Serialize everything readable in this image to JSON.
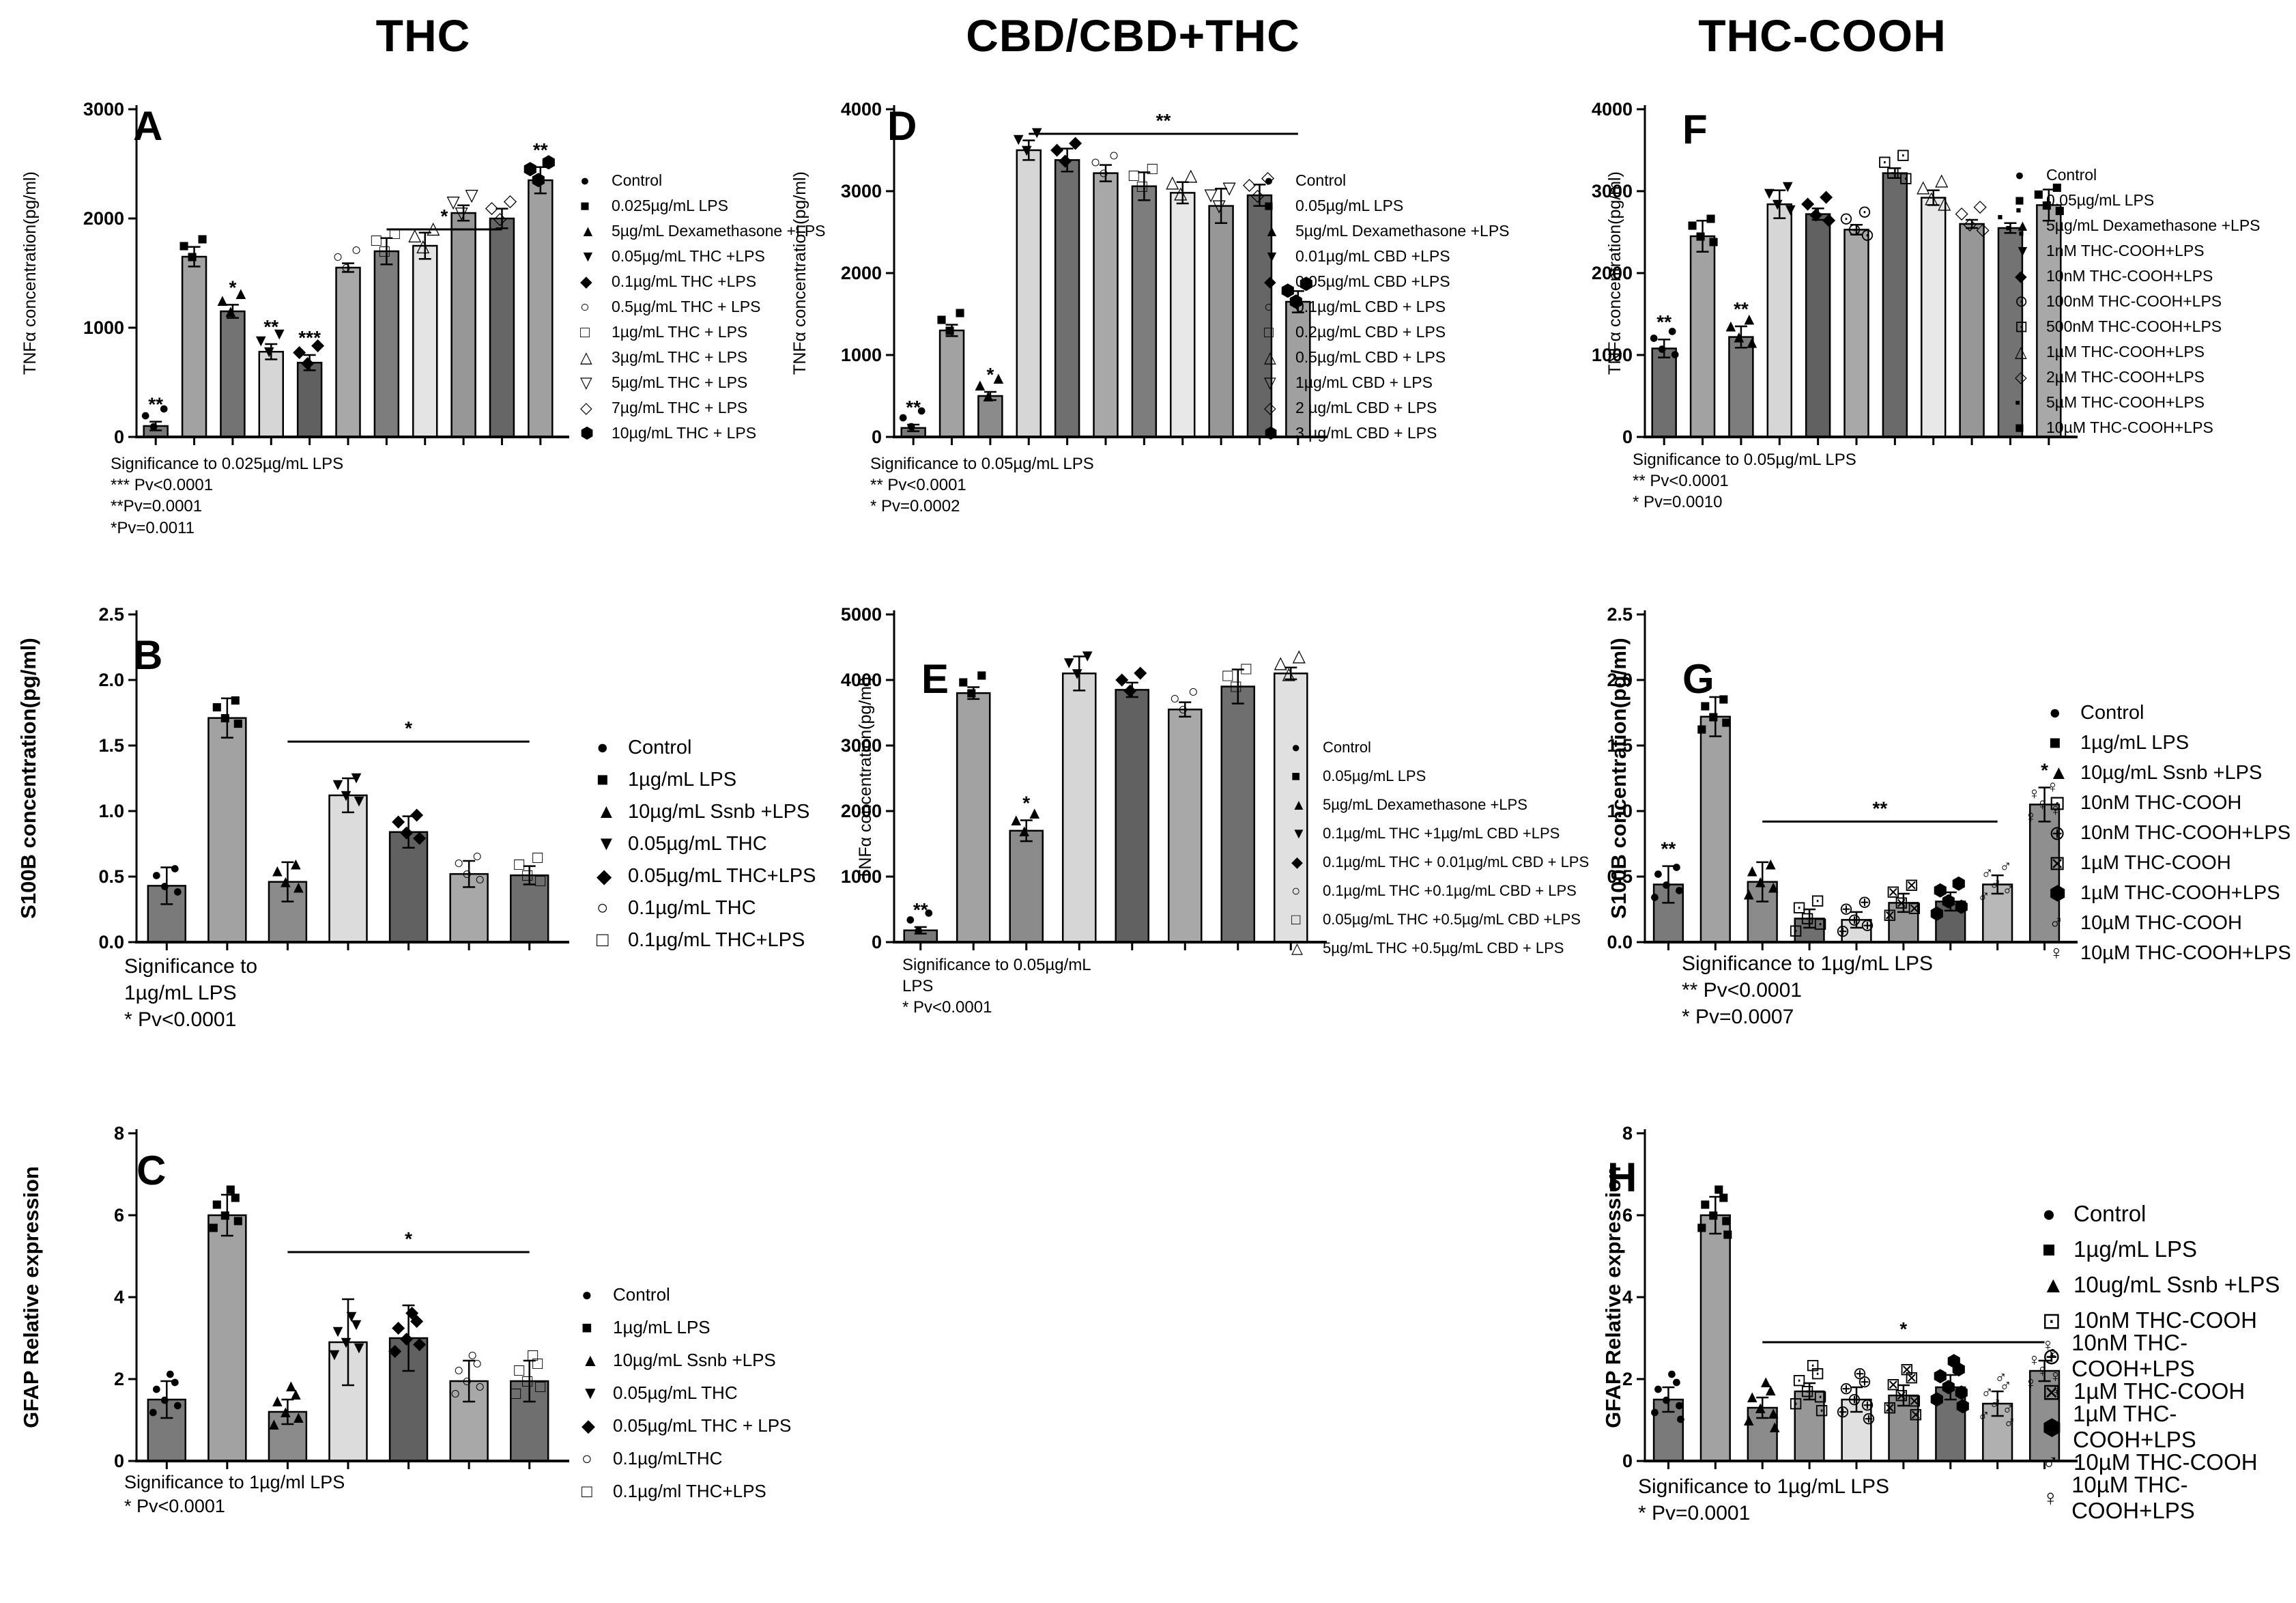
{
  "figure": {
    "column_titles": [
      {
        "text": "THC"
      },
      {
        "text": "CBD/CBD+THC"
      },
      {
        "text": "THC-COOH"
      }
    ]
  },
  "chart_data": [
    {
      "type": "bar",
      "panel": "A",
      "group": "THC",
      "ylabel": "TNFα concentration(pg/ml)",
      "ylim": [
        0,
        3000
      ],
      "ystep": 1000,
      "ydecimals": 0,
      "grid": false,
      "legend_position": "right",
      "categories": [
        "Control",
        "0.025µg/mL LPS",
        "5µg/mL Dexamethasone +LPS",
        "0.05µg/mL THC +LPS",
        "0.1µg/mL THC +LPS",
        "0.5µg/mL THC + LPS",
        "1µg/mL THC + LPS",
        "3µg/mL THC + LPS",
        "5µg/mL THC + LPS",
        "7µg/mL THC + LPS",
        "10µg/mL THC + LPS"
      ],
      "symbols": [
        "●",
        "■",
        "▲",
        "▼",
        "◆",
        "○",
        "□",
        "△",
        "▽",
        "◇",
        "⬢"
      ],
      "values": [
        100,
        1650,
        1150,
        780,
        680,
        1550,
        1700,
        1750,
        2050,
        2000,
        2350
      ],
      "errors": [
        40,
        90,
        60,
        70,
        70,
        40,
        120,
        120,
        70,
        90,
        120
      ],
      "colors": [
        "#7a7a7a",
        "#a2a2a2",
        "#737373",
        "#d6d6d6",
        "#606060",
        "#a8a8a8",
        "#7d7d7d",
        "#e4e4e4",
        "#979797",
        "#666666",
        "#a0a0a0"
      ],
      "npoints": 3,
      "stars": {
        "0": "**",
        "2": "*",
        "3": "**",
        "4": "***",
        "10": "**"
      },
      "bracket": {
        "from": 6,
        "to": 9,
        "y": 1900,
        "label": "*"
      },
      "significance_note": "Significance to 0.025µg/mL LPS\n*** Pv<0.0001\n**Pv=0.0001\n*Pv=0.0011"
    },
    {
      "type": "bar",
      "panel": "B",
      "group": "THC",
      "ylabel": "S100B concentration(pg/ml)",
      "ylim": [
        0,
        2.5
      ],
      "ystep": 0.5,
      "ydecimals": 1,
      "grid": false,
      "legend_position": "right",
      "categories": [
        "Control",
        "1µg/mL LPS",
        "10µg/mL Ssnb +LPS",
        "0.05µg/mL THC",
        "0.05µg/mL THC+LPS",
        "0.1µg/mL THC",
        "0.1µg/mL THC+LPS"
      ],
      "symbols": [
        "●",
        "■",
        "▲",
        "▼",
        "◆",
        "○",
        "□"
      ],
      "values": [
        0.43,
        1.71,
        0.46,
        1.12,
        0.84,
        0.52,
        0.51
      ],
      "errors": [
        0.14,
        0.15,
        0.15,
        0.13,
        0.12,
        0.1,
        0.07
      ],
      "colors": [
        "#7a7a7a",
        "#a2a2a2",
        "#8b8b8b",
        "#dcdcdc",
        "#616161",
        "#a8a8a8",
        "#6f6f6f"
      ],
      "npoints": 4,
      "stars": {},
      "bracket": {
        "from": 2,
        "to": 6,
        "y": 1.53,
        "label": "*"
      },
      "significance_note": "Significance to\n1µg/mL LPS\n* Pv<0.0001"
    },
    {
      "type": "bar",
      "panel": "C",
      "group": "THC",
      "ylabel": "GFAP  Relative expression",
      "ylim": [
        0,
        8
      ],
      "ystep": 2,
      "ydecimals": 0,
      "grid": false,
      "legend_position": "right",
      "categories": [
        "Control",
        "1µg/mL LPS",
        "10µg/mL Ssnb +LPS",
        "0.05µg/mL THC",
        "0.05µg/mL THC + LPS",
        "0.1µg/mLTHC",
        "0.1µg/ml THC+LPS"
      ],
      "symbols": [
        "●",
        "■",
        "▲",
        "▼",
        "◆",
        "○",
        "□"
      ],
      "values": [
        1.5,
        6.0,
        1.2,
        2.9,
        3.0,
        1.95,
        1.95
      ],
      "errors": [
        0.45,
        0.5,
        0.3,
        1.05,
        0.8,
        0.5,
        0.5
      ],
      "colors": [
        "#7a7a7a",
        "#a2a2a2",
        "#8b8b8b",
        "#dcdcdc",
        "#616161",
        "#a8a8a8",
        "#6f6f6f"
      ],
      "npoints": 6,
      "stars": {},
      "bracket": {
        "from": 2,
        "to": 6,
        "y": 5.1,
        "label": "*"
      },
      "significance_note": "Significance to 1µg/ml LPS\n* Pv<0.0001"
    },
    {
      "type": "bar",
      "panel": "D",
      "group": "CBD/CBD+THC",
      "ylabel": "TNFα concentration(pg/ml)",
      "ylim": [
        0,
        4000
      ],
      "ystep": 1000,
      "ydecimals": 0,
      "grid": false,
      "legend_position": "right",
      "categories": [
        "Control",
        "0.05µg/mL LPS",
        "5µg/mL Dexamethasone +LPS",
        "0.01µg/mL CBD +LPS",
        "0.05µg/mL CBD +LPS",
        "0.1µg/mL CBD + LPS",
        "0.2µg/mL CBD + LPS",
        "0.5µg/mL CBD + LPS",
        "1µg/mL CBD + LPS",
        "2 µg/mL CBD + LPS",
        "3 µg/mL CBD + LPS"
      ],
      "symbols": [
        "●",
        "■",
        "▲",
        "▼",
        "◆",
        "○",
        "□",
        "△",
        "▽",
        "◇",
        "⬢"
      ],
      "values": [
        110,
        1300,
        500,
        3500,
        3380,
        3220,
        3060,
        2980,
        2820,
        2950,
        1650
      ],
      "errors": [
        40,
        70,
        50,
        120,
        140,
        100,
        170,
        130,
        210,
        130,
        130
      ],
      "colors": [
        "#7a7a7a",
        "#a2a2a2",
        "#8b8b8b",
        "#d6d6d6",
        "#6f6f6f",
        "#a8a8a8",
        "#7d7d7d",
        "#e8e8e8",
        "#979797",
        "#666666",
        "#a0a0a0"
      ],
      "npoints": 3,
      "stars": {
        "0": "**",
        "2": "*"
      },
      "bracket": {
        "from": 3,
        "to": 10,
        "y": 3700,
        "label": "**"
      },
      "significance_note": "Significance to 0.05µg/mL LPS\n** Pv<0.0001\n* Pv=0.0002"
    },
    {
      "type": "bar",
      "panel": "E",
      "group": "CBD/CBD+THC",
      "ylabel": "TNFα concentration(pg/ml)",
      "ylim": [
        0,
        5000
      ],
      "ystep": 1000,
      "ydecimals": 0,
      "grid": false,
      "legend_position": "right",
      "categories": [
        "Control",
        "0.05µg/mL LPS",
        "5µg/mL Dexamethasone +LPS",
        "0.1µg/mL THC +1µg/mL CBD +LPS",
        "0.1µg/mL THC + 0.01µg/mL CBD + LPS",
        "0.1µg/mL THC +0.1µg/mL CBD + LPS",
        "0.05µg/mL THC +0.5µg/mL CBD +LPS",
        "5µg/mL THC +0.5µg/mL CBD + LPS"
      ],
      "symbols": [
        "●",
        "■",
        "▲",
        "▼",
        "◆",
        "○",
        "□",
        "△"
      ],
      "values": [
        180,
        3800,
        1700,
        4100,
        3850,
        3550,
        3900,
        4100
      ],
      "errors": [
        50,
        90,
        160,
        260,
        110,
        110,
        260,
        90
      ],
      "colors": [
        "#7a7a7a",
        "#a2a2a2",
        "#8b8b8b",
        "#d6d6d6",
        "#616161",
        "#a8a8a8",
        "#6f6f6f",
        "#e0e0e0"
      ],
      "npoints": 3,
      "stars": {
        "0": "**",
        "2": "*"
      },
      "bracket": null,
      "significance_note": "Significance to 0.05µg/mL\nLPS\n* Pv<0.0001"
    },
    {
      "type": "bar",
      "panel": "F",
      "group": "THC-COOH",
      "ylabel": "TNFα concentration(pg/ml)",
      "ylim": [
        0,
        4000
      ],
      "ystep": 1000,
      "ydecimals": 0,
      "grid": false,
      "legend_position": "right",
      "categories": [
        "Control",
        "0.05µg/mL LPS",
        "5µg/mL Dexamethasone +LPS",
        "1nM THC-COOH+LPS",
        "10nM THC-COOH+LPS",
        "100nM THC-COOH+LPS",
        "500nM THC-COOH+LPS",
        "1µM THC-COOH+LPS",
        "2µM THC-COOH+LPS",
        "5µM THC-COOH+LPS",
        "10µM THC-COOH+LPS"
      ],
      "symbols": [
        "●",
        "■",
        "▲",
        "▼",
        "◆",
        "⊙",
        "⊡",
        "△",
        "◇",
        "▪",
        "■"
      ],
      "values": [
        1080,
        2450,
        1220,
        2840,
        2720,
        2530,
        3220,
        2920,
        2600,
        2550,
        2830
      ],
      "errors": [
        110,
        190,
        130,
        170,
        70,
        60,
        60,
        90,
        50,
        60,
        190
      ],
      "colors": [
        "#6f6f6f",
        "#a2a2a2",
        "#7d7d7d",
        "#d6d6d6",
        "#616161",
        "#a8a8a8",
        "#6a6a6a",
        "#e8e8e8",
        "#979797",
        "#737373",
        "#a8a8a8"
      ],
      "npoints": 4,
      "stars": {
        "0": "**",
        "2": "**"
      },
      "bracket": null,
      "significance_note": "Significance to 0.05µg/mL LPS\n** Pv<0.0001\n* Pv=0.0010"
    },
    {
      "type": "bar",
      "panel": "G",
      "group": "THC-COOH",
      "ylabel": "S100B concentration(pg/ml)",
      "ylim": [
        0,
        2.5
      ],
      "ystep": 0.5,
      "ydecimals": 1,
      "grid": false,
      "legend_position": "right",
      "categories": [
        "Control",
        "1µg/mL LPS",
        "10µg/mL Ssnb +LPS",
        "10nM THC-COOH",
        "10nM THC-COOH+LPS",
        "1µM THC-COOH",
        "1µM THC-COOH+LPS",
        "10µM THC-COOH",
        "10µM THC-COOH+LPS"
      ],
      "symbols": [
        "●",
        "■",
        "▲",
        "⊡",
        "⊕",
        "⊠",
        "⬢",
        "♂",
        "♀"
      ],
      "values": [
        0.44,
        1.72,
        0.46,
        0.18,
        0.17,
        0.3,
        0.31,
        0.44,
        1.05
      ],
      "errors": [
        0.14,
        0.15,
        0.15,
        0.07,
        0.06,
        0.07,
        0.07,
        0.07,
        0.13
      ],
      "colors": [
        "#7a7a7a",
        "#a2a2a2",
        "#8b8b8b",
        "#6f6f6f",
        "#dcdcdc",
        "#979797",
        "#616161",
        "#b8b8b8",
        "#8f8f8f"
      ],
      "npoints": 5,
      "stars": {
        "0": "**",
        "8": "*"
      },
      "bracket": {
        "from": 2,
        "to": 7,
        "y": 0.92,
        "label": "**"
      },
      "significance_note": "Significance to 1µg/mL LPS\n** Pv<0.0001\n* Pv=0.0007"
    },
    {
      "type": "bar",
      "panel": "H",
      "group": "THC-COOH",
      "ylabel": "GFAP  Relative expression",
      "ylim": [
        0,
        8
      ],
      "ystep": 2,
      "ydecimals": 0,
      "grid": false,
      "legend_position": "right",
      "categories": [
        "Control",
        "1µg/mL LPS",
        "10ug/mL Ssnb +LPS",
        "10nM THC-COOH",
        "10nM THC-COOH+LPS",
        "1µM THC-COOH",
        "1µM THC-COOH+LPS",
        "10µM THC-COOH",
        "10µM THC-COOH+LPS"
      ],
      "symbols": [
        "●",
        "■",
        "▲",
        "⊡",
        "⊕",
        "⊠",
        "⬢",
        "♂",
        "♀"
      ],
      "values": [
        1.5,
        6.0,
        1.3,
        1.7,
        1.5,
        1.6,
        1.8,
        1.4,
        2.2
      ],
      "errors": [
        0.3,
        0.45,
        0.25,
        0.2,
        0.3,
        0.25,
        0.3,
        0.3,
        0.25
      ],
      "colors": [
        "#7a7a7a",
        "#a2a2a2",
        "#8b8b8b",
        "#979797",
        "#e0e0e0",
        "#8f8f8f",
        "#6f6f6f",
        "#b0b0b0",
        "#8f8f8f"
      ],
      "npoints": 7,
      "stars": {},
      "bracket": {
        "from": 2,
        "to": 8,
        "y": 2.9,
        "label": "*"
      },
      "significance_note": "Significance to 1µg/mL LPS\n* Pv=0.0001"
    }
  ]
}
